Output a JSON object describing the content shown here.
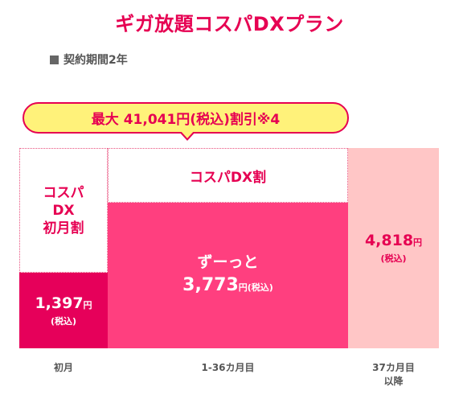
{
  "title": "ギガ放題コスパDXプラン",
  "term": {
    "icon": "square-bullet",
    "label": "契約期間2年"
  },
  "bubble": {
    "text": "最大 41,041円(税込)割引※4"
  },
  "discounts": {
    "first_month_lines": [
      "コスパ",
      "DX",
      "初月割"
    ],
    "dx_discount": "コスパDX割"
  },
  "prices": {
    "first_month": {
      "amount": "1,397",
      "unit": "円",
      "tax": "(税込)"
    },
    "main": {
      "phrase": "ずーっと",
      "amount": "3,773",
      "unit": "円",
      "tax": "(税込)"
    },
    "after": {
      "amount": "4,818",
      "unit": "円",
      "tax": "(税込)"
    }
  },
  "periods": {
    "first": "初月",
    "main": "1-36カ月目",
    "after_lines": [
      "37カ月目",
      "以降"
    ]
  },
  "colors": {
    "accent": "#e60052",
    "first_bar": "#e6005a",
    "main_bar": "#ff3f7f",
    "after_bar": "#ffc6c6",
    "bubble_fill": "#fff27a"
  }
}
